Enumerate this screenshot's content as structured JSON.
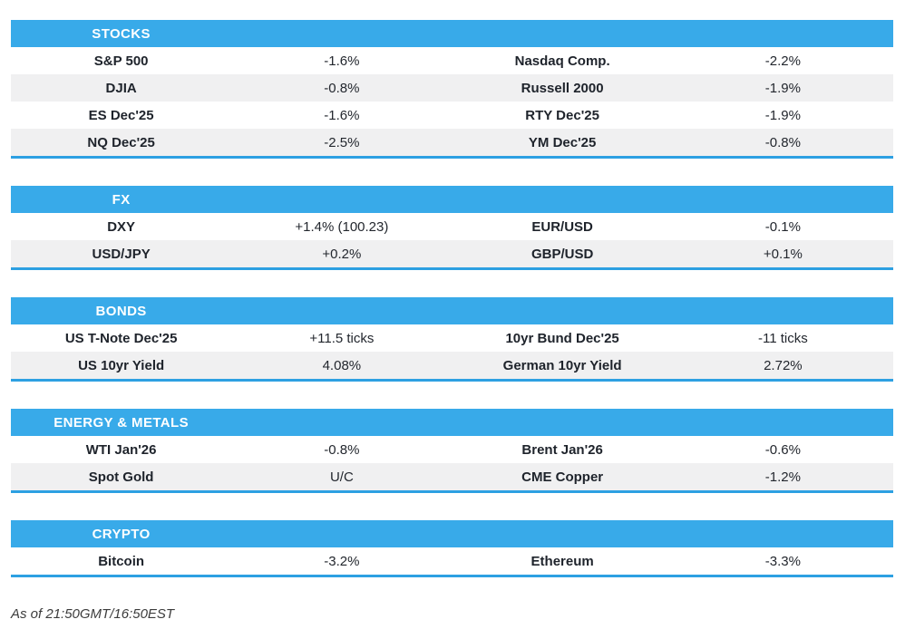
{
  "page": {
    "footer": "As of 21:50GMT/16:50EST"
  },
  "colors": {
    "header_bg": "#38aae9",
    "section_border": "#2da0e2",
    "stripe": "#f0f0f1",
    "text": "#1e232b"
  },
  "sections": [
    {
      "title": "STOCKS",
      "rows": [
        [
          "S&P 500",
          "-1.6%",
          "Nasdaq Comp.",
          "-2.2%"
        ],
        [
          "DJIA",
          "-0.8%",
          "Russell 2000",
          "-1.9%"
        ],
        [
          "ES Dec'25",
          "-1.6%",
          "RTY Dec'25",
          "-1.9%"
        ],
        [
          "NQ Dec'25",
          "-2.5%",
          "YM Dec'25",
          "-0.8%"
        ]
      ]
    },
    {
      "title": "FX",
      "rows": [
        [
          "DXY",
          "+1.4% (100.23)",
          "EUR/USD",
          "-0.1%"
        ],
        [
          "USD/JPY",
          "+0.2%",
          "GBP/USD",
          "+0.1%"
        ]
      ]
    },
    {
      "title": "BONDS",
      "rows": [
        [
          "US T-Note Dec'25",
          "+11.5 ticks",
          "10yr Bund Dec'25",
          "-11 ticks"
        ],
        [
          "US 10yr Yield",
          "4.08%",
          "German 10yr Yield",
          "2.72%"
        ]
      ]
    },
    {
      "title": "ENERGY & METALS",
      "rows": [
        [
          "WTI Jan'26",
          "-0.8%",
          "Brent Jan'26",
          "-0.6%"
        ],
        [
          "Spot Gold",
          "U/C",
          "CME Copper",
          "-1.2%"
        ]
      ]
    },
    {
      "title": "CRYPTO",
      "rows": [
        [
          "Bitcoin",
          "-3.2%",
          "Ethereum",
          "-3.3%"
        ]
      ]
    }
  ]
}
